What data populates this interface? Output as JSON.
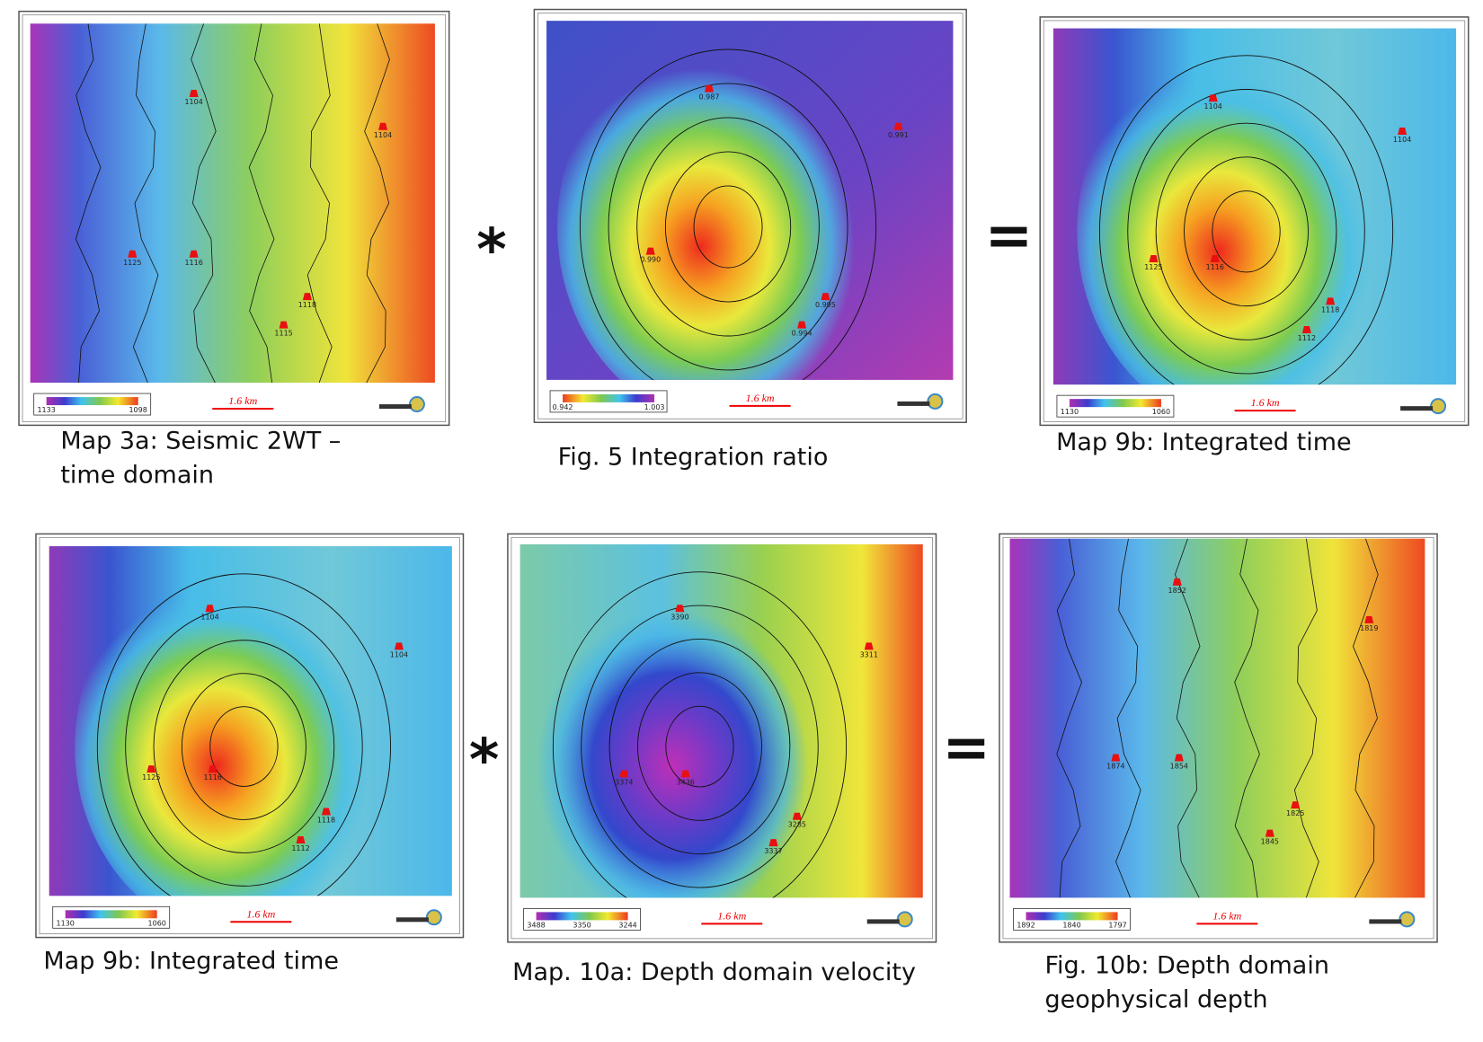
{
  "operators": [
    "*",
    "=",
    "*",
    "="
  ],
  "panels": [
    {
      "caption": [
        "Map 3a: Seismic  2WT –",
        "time domain"
      ],
      "colorbar_labels": [
        "1133",
        "1098"
      ],
      "scale_label": "1.6 km",
      "wells": [
        "1104",
        "1104",
        "1125",
        "1116",
        "1118",
        "1115"
      ]
    },
    {
      "caption": [
        "Fig. 5 Integration ratio"
      ],
      "colorbar_labels": [
        "0.942",
        "1.003"
      ],
      "scale_label": "1.6 km",
      "wells": [
        "0.987",
        "0.991",
        "0.990",
        "0.995",
        "0.994"
      ]
    },
    {
      "caption": [
        "Map 9b: Integrated time"
      ],
      "colorbar_labels": [
        "1130",
        "1060"
      ],
      "scale_label": "1.6 km",
      "wells": [
        "1104",
        "1104",
        "1125",
        "1116",
        "1118",
        "1112"
      ]
    },
    {
      "caption": [
        "Map 9b: Integrated  time"
      ],
      "colorbar_labels": [
        "1130",
        "1060"
      ],
      "scale_label": "1.6 km",
      "wells": [
        "1104",
        "1104",
        "1125",
        "1116",
        "1118",
        "1112"
      ]
    },
    {
      "caption": [
        "Map. 10a: Depth domain velocity"
      ],
      "colorbar_labels": [
        "3488",
        "3350",
        "3244"
      ],
      "scale_label": "1.6 km",
      "wells": [
        "3390",
        "3311",
        "3374",
        "3436",
        "3285",
        "3337"
      ]
    },
    {
      "caption": [
        "Fig. 10b: Depth domain",
        "geophysical depth"
      ],
      "colorbar_labels": [
        "1892",
        "1840",
        "1797"
      ],
      "scale_label": "1.6 km",
      "wells": [
        "1852",
        "1819",
        "1874",
        "1854",
        "1825",
        "1845"
      ]
    }
  ]
}
